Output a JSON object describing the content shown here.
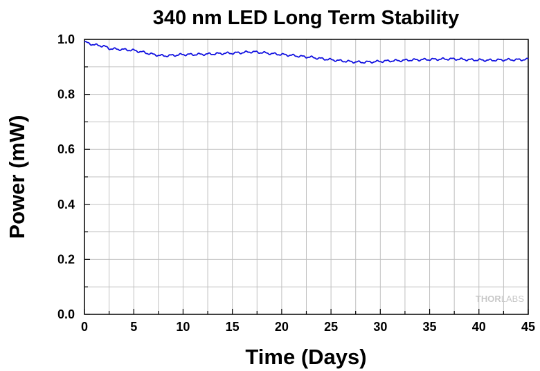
{
  "chart_data": {
    "type": "line",
    "title": "340 nm LED Long Term Stability",
    "xlabel": "Time (Days)",
    "ylabel": "Power (mW)",
    "xlim": [
      0,
      45
    ],
    "ylim": [
      0.0,
      1.0
    ],
    "xticks": [
      "0",
      "5",
      "10",
      "15",
      "20",
      "25",
      "30",
      "35",
      "40",
      "45"
    ],
    "yticks": [
      "0.0",
      "0.2",
      "0.4",
      "0.6",
      "0.8",
      "1.0"
    ],
    "grid": true,
    "legend": "none",
    "line_color": "#1010e0",
    "watermark": {
      "part1": "THOR",
      "part2": "LABS"
    },
    "series": [
      {
        "x": [
          0,
          0.5,
          1,
          1.5,
          2,
          2.5,
          3,
          4,
          5,
          6,
          7,
          8,
          9,
          10,
          11,
          12,
          13,
          14,
          15,
          16,
          17,
          18,
          19,
          20,
          21,
          22,
          23,
          24,
          25,
          26,
          27,
          28,
          29,
          30,
          31,
          32,
          33,
          34,
          35,
          36,
          37,
          38,
          39,
          40,
          41,
          42,
          43,
          44,
          45
        ],
        "y": [
          0.99,
          0.985,
          0.98,
          0.978,
          0.975,
          0.967,
          0.965,
          0.963,
          0.96,
          0.953,
          0.945,
          0.94,
          0.942,
          0.945,
          0.945,
          0.946,
          0.947,
          0.949,
          0.95,
          0.952,
          0.955,
          0.952,
          0.948,
          0.945,
          0.942,
          0.938,
          0.935,
          0.93,
          0.926,
          0.922,
          0.919,
          0.917,
          0.918,
          0.92,
          0.922,
          0.923,
          0.925,
          0.926,
          0.927,
          0.928,
          0.929,
          0.928,
          0.926,
          0.925,
          0.924,
          0.925,
          0.926,
          0.926,
          0.927
        ]
      }
    ]
  }
}
